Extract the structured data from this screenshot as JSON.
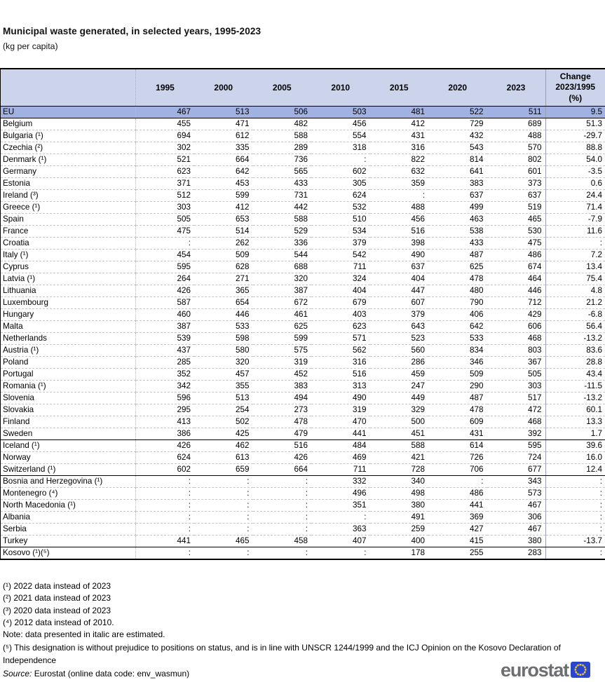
{
  "chart_data": {
    "type": "table",
    "title": "Municipal waste generated, in selected years, 1995-2023",
    "unit": "(kg per capita)",
    "year_columns": [
      "1995",
      "2000",
      "2005",
      "2010",
      "2015",
      "2020",
      "2023"
    ],
    "change_column": {
      "lines": [
        "Change",
        "2023/1995",
        "(%)"
      ]
    },
    "missing_symbol": ":",
    "rows": [
      {
        "name": "EU",
        "values": [
          "467",
          "513",
          "506",
          "503",
          "481",
          "522",
          "511",
          "9.5"
        ],
        "highlight": true
      },
      {
        "name": "Belgium",
        "values": [
          "455",
          "471",
          "482",
          "456",
          "412",
          "729",
          "689",
          "51.3"
        ]
      },
      {
        "name": "Bulgaria (¹)",
        "values": [
          "694",
          "612",
          "588",
          "554",
          "431",
          "432",
          "488",
          "-29.7"
        ]
      },
      {
        "name": "Czechia (²)",
        "values": [
          "302",
          "335",
          "289",
          "318",
          "316",
          "543",
          "570",
          "88.8"
        ]
      },
      {
        "name": "Denmark (¹)",
        "values": [
          "521",
          "664",
          "736",
          ":",
          "822",
          "814",
          "802",
          "54.0"
        ]
      },
      {
        "name": "Germany",
        "values": [
          "623",
          "642",
          "565",
          "602",
          "632",
          "641",
          "601",
          "-3.5"
        ]
      },
      {
        "name": "Estonia",
        "values": [
          "371",
          "453",
          "433",
          "305",
          "359",
          "383",
          "373",
          "0.6"
        ]
      },
      {
        "name": "Ireland (³)",
        "values": [
          "512",
          "599",
          "731",
          "624",
          ":",
          "637",
          "637",
          "24.4"
        ]
      },
      {
        "name": "Greece (¹)",
        "values": [
          "303",
          "412",
          "442",
          "532",
          "488",
          "499",
          "519",
          "71.4"
        ]
      },
      {
        "name": "Spain",
        "values": [
          "505",
          "653",
          "588",
          "510",
          "456",
          "463",
          "465",
          "-7.9"
        ]
      },
      {
        "name": "France",
        "values": [
          "475",
          "514",
          "529",
          "534",
          "516",
          "538",
          "530",
          "11.6"
        ]
      },
      {
        "name": "Croatia",
        "values": [
          ":",
          "262",
          "336",
          "379",
          "398",
          "433",
          "475",
          ":"
        ]
      },
      {
        "name": "Italy (¹)",
        "values": [
          "454",
          "509",
          "544",
          "542",
          "490",
          "487",
          "486",
          "7.2"
        ]
      },
      {
        "name": "Cyprus",
        "values": [
          "595",
          "628",
          "688",
          "711",
          "637",
          "625",
          "674",
          "13.4"
        ]
      },
      {
        "name": "Latvia (¹)",
        "values": [
          "264",
          "271",
          "320",
          "324",
          "404",
          "478",
          "464",
          "75.4"
        ]
      },
      {
        "name": "Lithuania",
        "values": [
          "426",
          "365",
          "387",
          "404",
          "447",
          "480",
          "446",
          "4.8"
        ]
      },
      {
        "name": "Luxembourg",
        "values": [
          "587",
          "654",
          "672",
          "679",
          "607",
          "790",
          "712",
          "21.2"
        ]
      },
      {
        "name": "Hungary",
        "values": [
          "460",
          "446",
          "461",
          "403",
          "379",
          "406",
          "429",
          "-6.8"
        ]
      },
      {
        "name": "Malta",
        "values": [
          "387",
          "533",
          "625",
          "623",
          "643",
          "642",
          "606",
          "56.4"
        ]
      },
      {
        "name": "Netherlands",
        "values": [
          "539",
          "598",
          "599",
          "571",
          "523",
          "533",
          "468",
          "-13.2"
        ]
      },
      {
        "name": "Austria (¹)",
        "values": [
          "437",
          "580",
          "575",
          "562",
          "560",
          "834",
          "803",
          "83.6"
        ]
      },
      {
        "name": "Poland",
        "values": [
          "285",
          "320",
          "319",
          "316",
          "286",
          "346",
          "367",
          "28.8"
        ]
      },
      {
        "name": "Portugal",
        "values": [
          "352",
          "457",
          "452",
          "516",
          "459",
          "509",
          "505",
          "43.4"
        ]
      },
      {
        "name": "Romania (¹)",
        "values": [
          "342",
          "355",
          "383",
          "313",
          "247",
          "290",
          "303",
          "-11.5"
        ]
      },
      {
        "name": "Slovenia",
        "values": [
          "596",
          "513",
          "494",
          "490",
          "449",
          "487",
          "517",
          "-13.2"
        ]
      },
      {
        "name": "Slovakia",
        "values": [
          "295",
          "254",
          "273",
          "319",
          "329",
          "478",
          "472",
          "60.1"
        ]
      },
      {
        "name": "Finland",
        "values": [
          "413",
          "502",
          "478",
          "470",
          "500",
          "609",
          "468",
          "13.3"
        ]
      },
      {
        "name": "Sweden",
        "values": [
          "386",
          "425",
          "479",
          "441",
          "451",
          "431",
          "392",
          "1.7"
        ],
        "separator_after": true
      },
      {
        "name": "Iceland (¹)",
        "values": [
          "426",
          "462",
          "516",
          "484",
          "588",
          "614",
          "595",
          "39.6"
        ]
      },
      {
        "name": "Norway",
        "values": [
          "624",
          "613",
          "426",
          "469",
          "421",
          "726",
          "724",
          "16.0"
        ]
      },
      {
        "name": "Switzerland (¹)",
        "values": [
          "602",
          "659",
          "664",
          "711",
          "728",
          "706",
          "677",
          "12.4"
        ],
        "separator_after": true
      },
      {
        "name": "Bosnia and Herzegovina (¹)",
        "values": [
          ":",
          ":",
          ":",
          "332",
          "340",
          ":",
          "343",
          ":"
        ]
      },
      {
        "name": "Montenegro (⁴)",
        "values": [
          ":",
          ":",
          ":",
          "496",
          "498",
          "486",
          "573",
          ":"
        ]
      },
      {
        "name": "North Macedonia (¹)",
        "values": [
          ":",
          ":",
          ":",
          "351",
          "380",
          "441",
          "467",
          ":"
        ]
      },
      {
        "name": "Albania",
        "values": [
          ":",
          ":",
          ":",
          ":",
          "491",
          "369",
          "306",
          ":"
        ]
      },
      {
        "name": "Serbia",
        "values": [
          ":",
          ":",
          ":",
          "363",
          "259",
          "427",
          "467",
          ":"
        ]
      },
      {
        "name": "Turkey",
        "values": [
          "441",
          "465",
          "458",
          "407",
          "400",
          "415",
          "380",
          "-13.7"
        ],
        "separator_after": true
      },
      {
        "name": "Kosovo (¹)(⁵)",
        "values": [
          ":",
          ":",
          ":",
          ":",
          "178",
          "255",
          "283",
          ":"
        ]
      }
    ]
  },
  "footnotes": [
    "(¹) 2022 data instead of 2023",
    "(²) 2021 data instead of 2023",
    "(³) 2020 data instead of 2023",
    "(⁴) 2012 data instead of 2010."
  ],
  "note": "Note: data presented in italic are estimated.",
  "kosovo_footnote": "(⁵) This designation is without prejudice to positions on status, and is in line with UNSCR 1244/1999 and the ICJ Opinion on the Kosovo Declaration of Independence",
  "source": {
    "label": "Source:",
    "text": " Eurostat (online data code: env_wasmun)"
  },
  "logo": {
    "text": "eurostat"
  },
  "colors": {
    "header_bg": "#ccd4ec",
    "eu_row_bg": "#a1b2e2",
    "logo_gray": "#6d6e71",
    "flag_blue": "#2b46c8",
    "star_yellow": "#ffcc00"
  }
}
